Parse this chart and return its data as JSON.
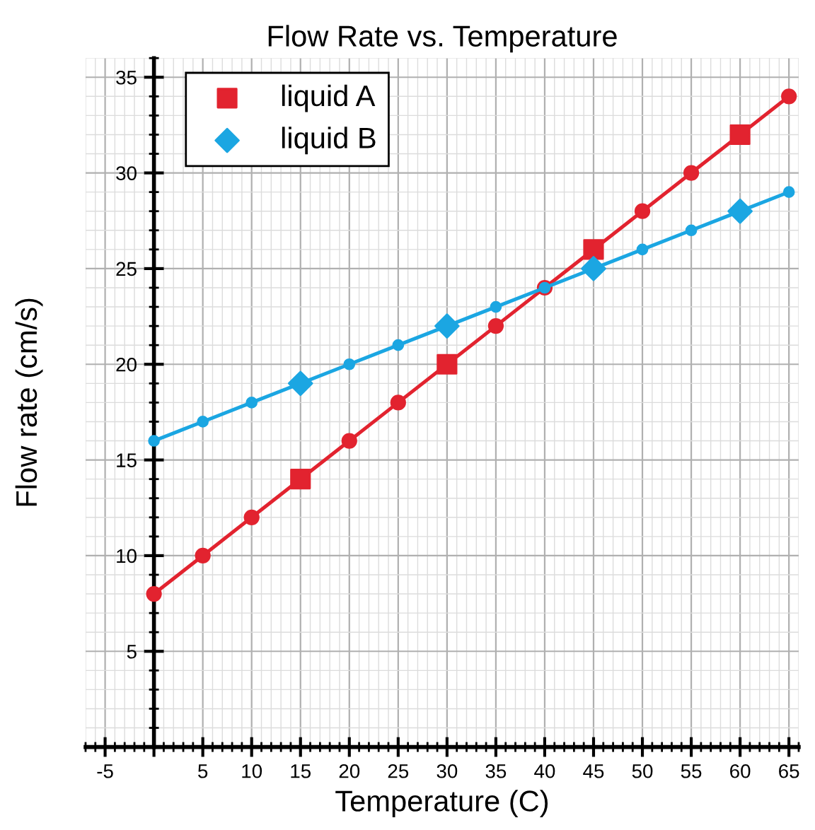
{
  "chart_data": {
    "type": "line",
    "title": "Flow Rate vs. Temperature",
    "xlabel": "Temperature (C)",
    "ylabel": "Flow rate (cm/s)",
    "series": [
      {
        "color": "#e2232f",
        "marker": "circle",
        "x": [
          0,
          5,
          10,
          20,
          25,
          35,
          40,
          50,
          55,
          65
        ],
        "values": [
          8,
          10,
          12,
          16,
          18,
          22,
          24,
          28,
          30,
          34
        ]
      },
      {
        "color": "#1ba6e2",
        "marker": "circle",
        "x": [
          0,
          5,
          10,
          20,
          25,
          35,
          40,
          50,
          55,
          65
        ],
        "values": [
          16,
          17,
          18,
          20,
          21,
          23,
          24,
          26,
          27,
          29
        ]
      },
      {
        "name": "liquid A",
        "type": "scatter",
        "color": "#e2232f",
        "marker": "square",
        "x": [
          15,
          30,
          45,
          60
        ],
        "values": [
          14,
          20,
          26,
          32
        ]
      },
      {
        "name": "liquid B",
        "type": "scatter",
        "color": "#1ba6e2",
        "marker": "diamond",
        "x": [
          15,
          30,
          45,
          60
        ],
        "values": [
          19,
          22,
          25,
          28
        ]
      }
    ],
    "xlim": [
      -7,
      66
    ],
    "ylim": [
      0,
      36
    ],
    "xticks": [
      -5,
      {
        "value": 0,
        "label": null
      },
      5,
      10,
      15,
      20,
      25,
      30,
      35,
      40,
      45,
      50,
      55,
      60,
      65
    ],
    "yticks": [
      5,
      10,
      15,
      20,
      25,
      30,
      35
    ],
    "grid": true,
    "legend": "top left"
  }
}
